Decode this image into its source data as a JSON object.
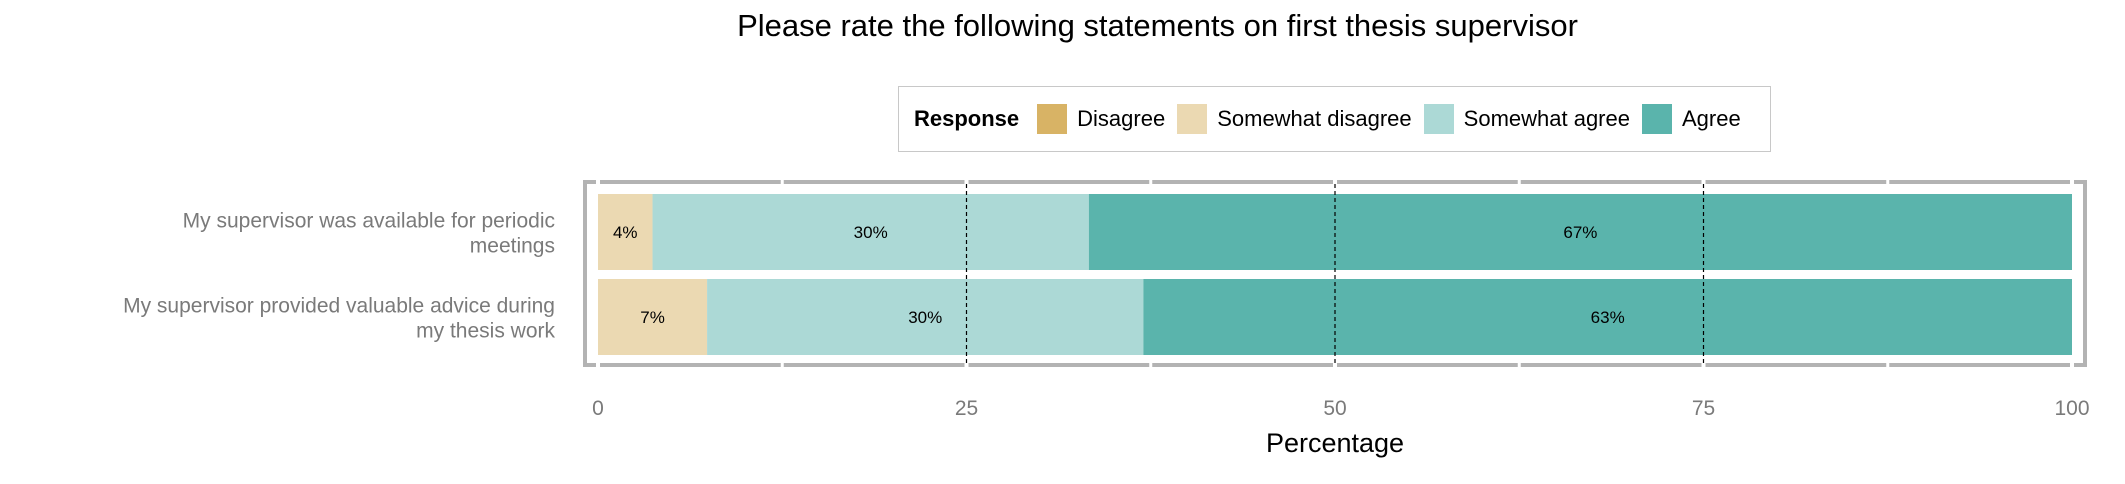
{
  "chart_data": {
    "type": "bar",
    "orientation": "horizontal",
    "stacked": true,
    "title": "Please rate the following statements on first thesis supervisor",
    "xlabel": "Percentage",
    "ylabel": "",
    "xlim": [
      0,
      100
    ],
    "xticks": [
      "0",
      "25",
      "50",
      "75",
      "100"
    ],
    "grid": true,
    "legend": {
      "title": "Response",
      "placement": "top"
    },
    "categories": [
      "My supervisor was available for periodic meetings",
      "My supervisor provided valuable advice during my thesis work"
    ],
    "series": [
      {
        "name": "Disagree",
        "color": "#d8b365",
        "values": [
          0,
          0
        ]
      },
      {
        "name": "Somewhat disagree",
        "color": "#ebd9b2",
        "values": [
          3.7,
          7.4
        ]
      },
      {
        "name": "Somewhat agree",
        "color": "#acd9d6",
        "values": [
          29.6,
          29.6
        ]
      },
      {
        "name": "Agree",
        "color": "#5ab4ac",
        "values": [
          66.7,
          63.0
        ]
      }
    ],
    "data_labels": [
      [
        "",
        "4%",
        "30%",
        "67%"
      ],
      [
        "",
        "7%",
        "30%",
        "63%"
      ]
    ]
  }
}
